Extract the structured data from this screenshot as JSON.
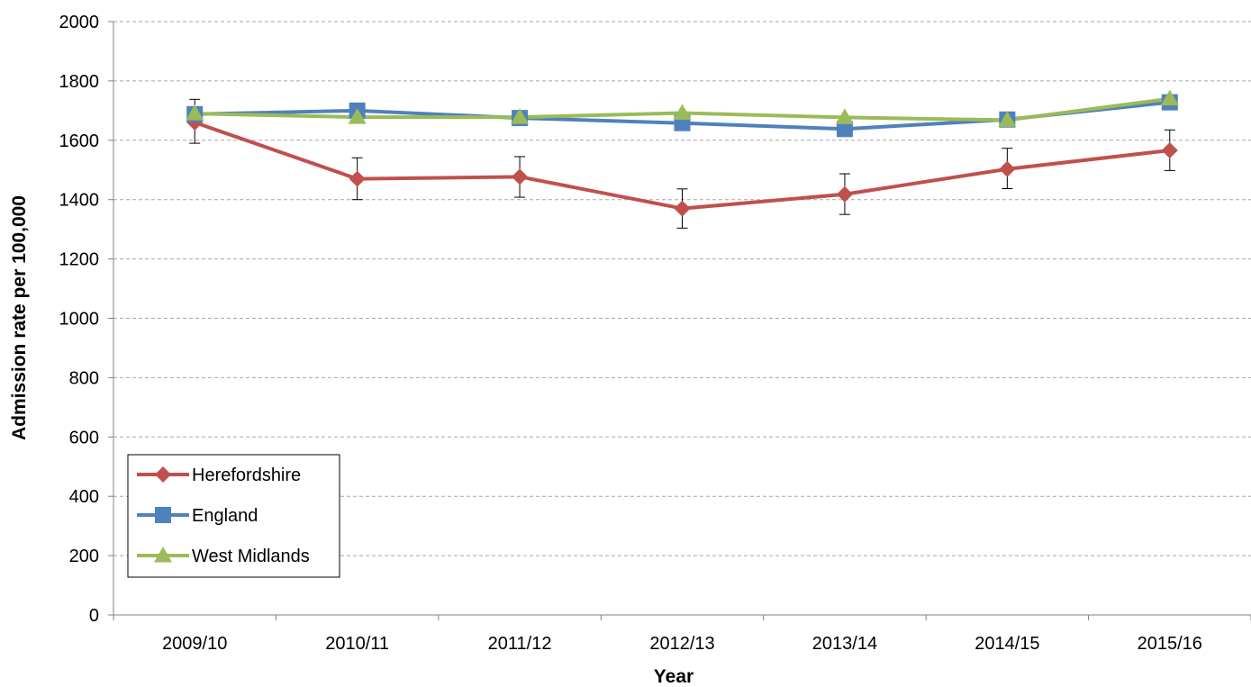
{
  "chart_data": {
    "type": "line",
    "xlabel": "Year",
    "ylabel": "Admission rate per 100,000",
    "categories": [
      "2009/10",
      "2010/11",
      "2011/12",
      "2012/13",
      "2013/14",
      "2014/15",
      "2015/16"
    ],
    "ylim": [
      0,
      2000
    ],
    "yticks": [
      "0",
      "200",
      "400",
      "600",
      "800",
      "1000",
      "1200",
      "1400",
      "1600",
      "1800",
      "2000"
    ],
    "grid": true,
    "legend_position": "bottom-left",
    "series": [
      {
        "name": "Herefordshire",
        "marker": "diamond",
        "color": "#C0504D",
        "values": [
          1660,
          1470,
          1477,
          1370,
          1418,
          1503,
          1566
        ],
        "error_low": [
          1590,
          1400,
          1408,
          1304,
          1350,
          1437,
          1498
        ],
        "error_high": [
          1738,
          1541,
          1545,
          1436,
          1487,
          1573,
          1635
        ]
      },
      {
        "name": "England",
        "marker": "square",
        "color": "#4F81BD",
        "values": [
          1688,
          1700,
          1675,
          1658,
          1638,
          1670,
          1728
        ]
      },
      {
        "name": "West Midlands",
        "marker": "triangle",
        "color": "#9BBB59",
        "values": [
          1690,
          1678,
          1678,
          1692,
          1677,
          1668,
          1740
        ]
      }
    ]
  }
}
